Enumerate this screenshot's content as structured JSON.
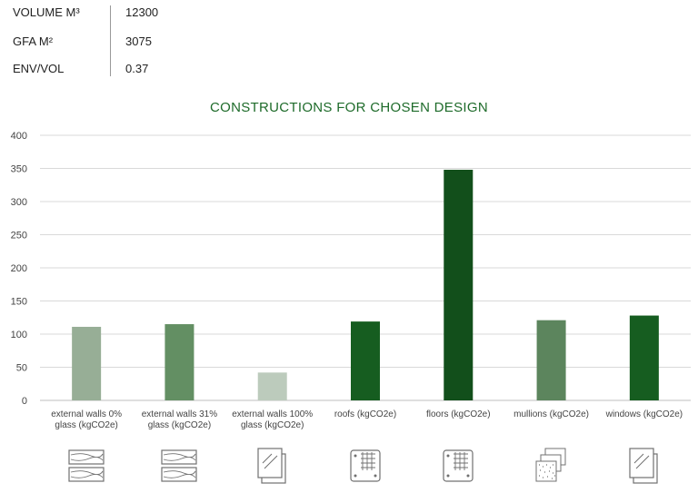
{
  "metrics": [
    {
      "label": "VOLUME M³",
      "value": "12300"
    },
    {
      "label": "GFA M²",
      "value": "3075"
    },
    {
      "label": "ENV/VOL",
      "value": "0.37"
    }
  ],
  "colors": {
    "title": "#1e6b2a",
    "grid": "#d9d9d9",
    "axis_text": "#444444",
    "icon_stroke": "#707070"
  },
  "chart_data": {
    "type": "bar",
    "title": "CONSTRUCTIONS FOR CHOSEN DESIGN",
    "xlabel": "",
    "ylabel": "",
    "ylim": [
      0,
      400
    ],
    "yticks": [
      0,
      50,
      100,
      150,
      200,
      250,
      300,
      350,
      400
    ],
    "grid": true,
    "categories": [
      [
        "external walls 0%",
        "glass (kgCO2e)"
      ],
      [
        "external walls 31%",
        "glass (kgCO2e)"
      ],
      [
        "external walls 100%",
        "glass (kgCO2e)"
      ],
      [
        "roofs (kgCO2e)"
      ],
      [
        "floors (kgCO2e)"
      ],
      [
        "mullions (kgCO2e)"
      ],
      [
        "windows (kgCO2e)"
      ]
    ],
    "values": [
      111,
      115,
      42,
      119,
      348,
      121,
      128
    ],
    "bar_colors": [
      "#97ae96",
      "#638f63",
      "#bccbbc",
      "#165d20",
      "#124f1b",
      "#5c855d",
      "#165d20"
    ]
  },
  "icons": [
    {
      "name": "wood-planks-icon"
    },
    {
      "name": "wood-planks-icon"
    },
    {
      "name": "glass-panes-icon"
    },
    {
      "name": "roof-panel-icon"
    },
    {
      "name": "floor-panel-icon"
    },
    {
      "name": "insulation-layers-icon"
    },
    {
      "name": "glass-panes-icon"
    }
  ]
}
